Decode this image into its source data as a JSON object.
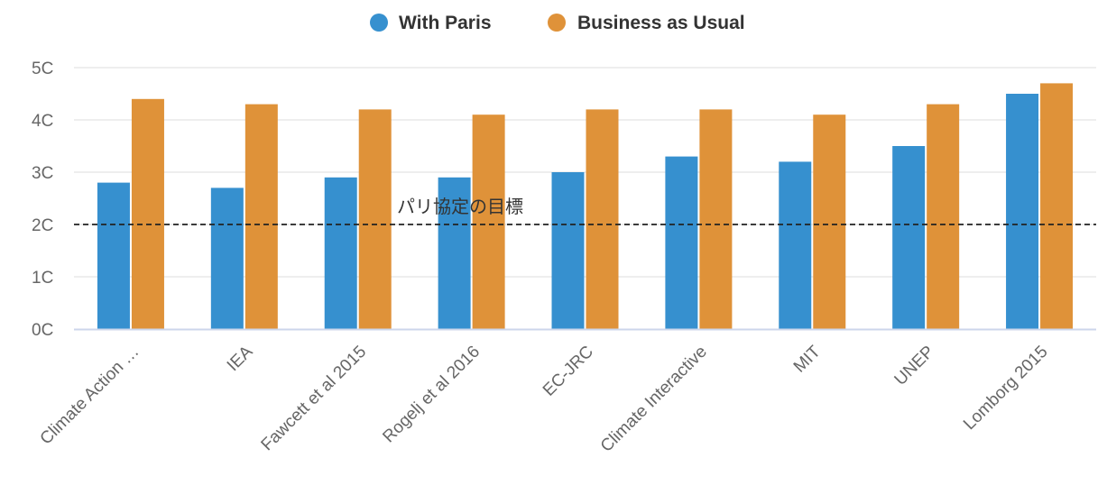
{
  "chart_data": {
    "type": "bar",
    "title": "",
    "xlabel": "",
    "ylabel": "",
    "categories": [
      "Climate Action …",
      "IEA",
      "Fawcett et al 2015",
      "Rogelj et al 2016",
      "EC-JRC",
      "Climate Interactive",
      "MIT",
      "UNEP",
      "Lomborg 2015"
    ],
    "series": [
      {
        "name": "With Paris",
        "color": "#3690cf",
        "values": [
          2.8,
          2.7,
          2.9,
          2.9,
          3.0,
          3.3,
          3.2,
          3.5,
          4.5
        ]
      },
      {
        "name": "Business as Usual",
        "color": "#df9239",
        "values": [
          4.4,
          4.3,
          4.2,
          4.1,
          4.2,
          4.2,
          4.1,
          4.3,
          4.7
        ]
      }
    ],
    "ylim": [
      0,
      5
    ],
    "y_ticks": [
      {
        "value": 0,
        "label": "0C"
      },
      {
        "value": 1,
        "label": "1C"
      },
      {
        "value": 2,
        "label": "2C"
      },
      {
        "value": 3,
        "label": "3C"
      },
      {
        "value": 4,
        "label": "4C"
      },
      {
        "value": 5,
        "label": "5C"
      }
    ],
    "grid": true,
    "legend_position": "top-center",
    "reference_line": {
      "value": 2.0,
      "label": "パリ協定の目標",
      "style": "dashed",
      "color": "#222222"
    },
    "gridline_color": "#e8e8e8",
    "baseline_color": "#ccd6eb"
  }
}
